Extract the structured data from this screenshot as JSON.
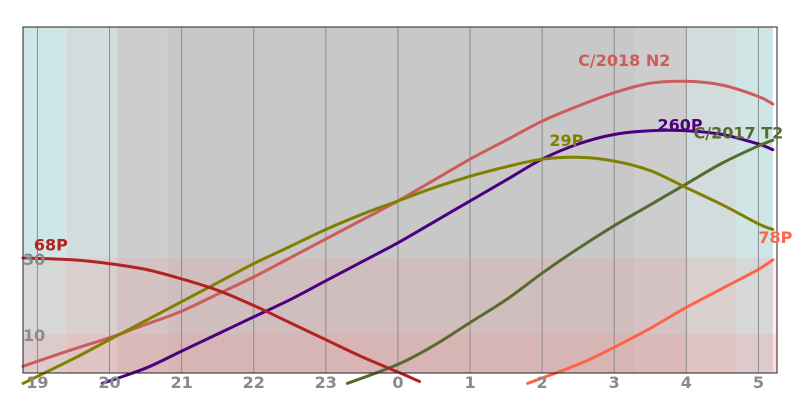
{
  "chart_data": {
    "type": "line",
    "xlim": [
      18.8,
      5.2
    ],
    "ylim": [
      -3,
      93
    ],
    "x_ticks": [
      {
        "label": "19",
        "value": 19
      },
      {
        "label": "20",
        "value": 20
      },
      {
        "label": "21",
        "value": 21
      },
      {
        "label": "22",
        "value": 22
      },
      {
        "label": "23",
        "value": 23
      },
      {
        "label": "0",
        "value": 24
      },
      {
        "label": "1",
        "value": 25
      },
      {
        "label": "2",
        "value": 26
      },
      {
        "label": "3",
        "value": 27
      },
      {
        "label": "4",
        "value": 28
      },
      {
        "label": "5",
        "value": 29
      }
    ],
    "y_marks": [
      {
        "label": "10",
        "value": 10
      },
      {
        "label": "30",
        "value": 30
      }
    ],
    "bands": [
      {
        "from": 18.8,
        "to": 19.4,
        "color": "#cfe6e6"
      },
      {
        "from": 19.4,
        "to": 20.1,
        "color": "#d3dcdc"
      },
      {
        "from": 20.1,
        "to": 20.8,
        "color": "#cdcdcd"
      },
      {
        "from": 20.8,
        "to": 27.3,
        "color": "#c8c8c8"
      },
      {
        "from": 27.3,
        "to": 28.0,
        "color": "#cdcdcd"
      },
      {
        "from": 28.0,
        "to": 28.7,
        "color": "#d3dcdc"
      },
      {
        "from": 28.7,
        "to": 29.2,
        "color": "#cfe6e6"
      }
    ],
    "series": [
      {
        "name": "C/2018 N2",
        "color": "#cd5c5c",
        "x": [
          18.8,
          19.5,
          20.0,
          20.5,
          21.0,
          21.5,
          22.0,
          22.5,
          23.0,
          23.5,
          24.0,
          24.5,
          25.0,
          25.5,
          26.0,
          26.5,
          27.0,
          27.5,
          28.0,
          28.5,
          29.0,
          29.2
        ],
        "y": [
          1.5,
          6,
          9,
          12.5,
          16,
          20.5,
          25,
          30,
          35,
          40,
          45,
          50.5,
          56,
          61,
          66,
          70,
          73.5,
          76,
          76.5,
          75.5,
          72.5,
          70.5
        ],
        "label_at": [
          26.5,
          80.5
        ]
      },
      {
        "name": "260P",
        "color": "#4b0082",
        "x": [
          19.9,
          20.5,
          21.0,
          21.5,
          22.0,
          22.5,
          23.0,
          23.5,
          24.0,
          24.5,
          25.0,
          25.5,
          26.0,
          26.5,
          27.0,
          27.5,
          28.0,
          28.5,
          29.0,
          29.2
        ],
        "y": [
          -3,
          1,
          5.5,
          10,
          14.5,
          19,
          24,
          29,
          34,
          39.5,
          45,
          50.5,
          56,
          60,
          62.5,
          63.5,
          63.5,
          62.5,
          60,
          58.5
        ],
        "label_at": [
          27.6,
          63.5
        ]
      },
      {
        "name": "C/2017 T2",
        "color": "#556b2f",
        "x": [
          23.3,
          24.0,
          24.5,
          25.0,
          25.5,
          26.0,
          26.5,
          27.0,
          27.5,
          28.0,
          28.5,
          29.0,
          29.2
        ],
        "y": [
          -3,
          2,
          7,
          13,
          19,
          26,
          32.5,
          38.5,
          44,
          49.5,
          55,
          59.5,
          61
        ],
        "label_at": [
          28.1,
          61.5
        ]
      },
      {
        "name": "29P",
        "color": "#808000",
        "x": [
          18.8,
          19.5,
          20.0,
          20.5,
          21.0,
          21.5,
          22.0,
          22.5,
          23.0,
          23.5,
          24.0,
          24.5,
          25.0,
          25.5,
          26.0,
          26.5,
          27.0,
          27.5,
          28.0,
          28.5,
          29.0,
          29.2
        ],
        "y": [
          -3,
          3.5,
          8.5,
          13.5,
          18.5,
          23.5,
          28.5,
          33,
          37.5,
          41.5,
          45,
          48.5,
          51.5,
          54,
          56,
          56.5,
          55.5,
          53,
          48.5,
          44,
          39,
          37.5
        ],
        "label_at": [
          26.1,
          59.5
        ]
      },
      {
        "name": "68P",
        "color": "#b22222",
        "x": [
          18.8,
          19.5,
          20.0,
          20.5,
          21.0,
          21.5,
          22.0,
          22.5,
          23.0,
          23.5,
          24.0,
          24.3
        ],
        "y": [
          30,
          29.5,
          28.5,
          27,
          24.5,
          21.5,
          17.5,
          13,
          8.5,
          4,
          0,
          -2.5
        ],
        "label_at": [
          18.95,
          32
        ]
      },
      {
        "name": "78P",
        "color": "#ff6347",
        "x": [
          25.8,
          26.5,
          27.0,
          27.5,
          28.0,
          28.5,
          29.0,
          29.2
        ],
        "y": [
          -3,
          2,
          6.5,
          11.5,
          17,
          22,
          27,
          29.5
        ],
        "label_at": [
          29.0,
          34
        ]
      }
    ]
  }
}
